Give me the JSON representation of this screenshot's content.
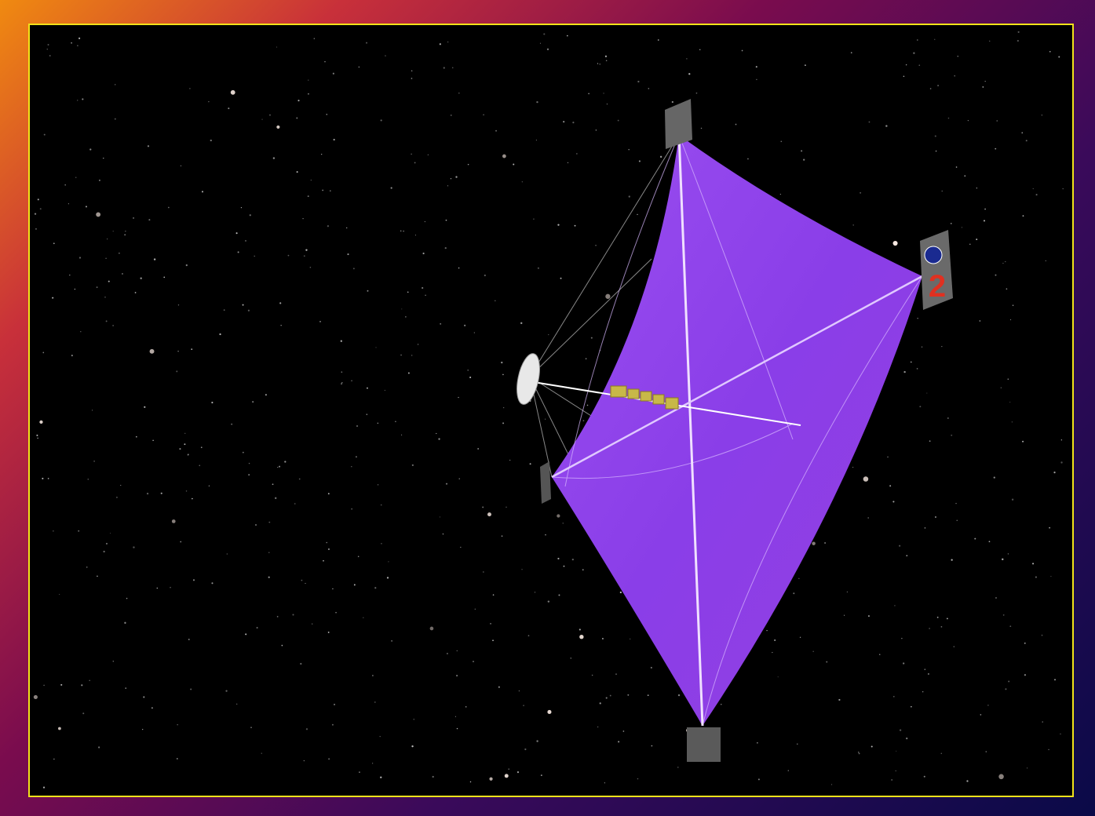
{
  "panel": {
    "label": "2"
  }
}
